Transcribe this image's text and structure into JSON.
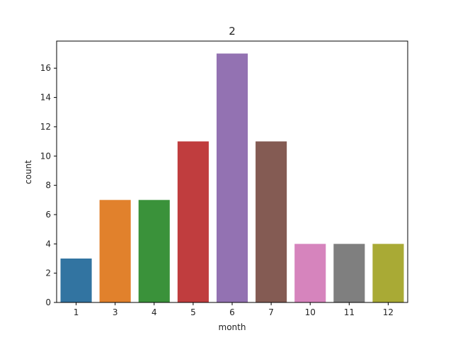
{
  "chart_data": {
    "type": "bar",
    "title": "2",
    "xlabel": "month",
    "ylabel": "count",
    "categories": [
      "1",
      "3",
      "4",
      "5",
      "6",
      "7",
      "10",
      "11",
      "12"
    ],
    "values": [
      3,
      7,
      7,
      11,
      17,
      11,
      4,
      4,
      4
    ],
    "colors": [
      "#3274a1",
      "#e1812c",
      "#3a923a",
      "#c03d3e",
      "#9372b2",
      "#845b53",
      "#d684bd",
      "#7f7f7f",
      "#a9aa35"
    ],
    "ylim": [
      0,
      17.85
    ],
    "yticks": [
      0,
      2,
      4,
      6,
      8,
      10,
      12,
      14,
      16
    ],
    "grid": false,
    "legend": "none"
  }
}
